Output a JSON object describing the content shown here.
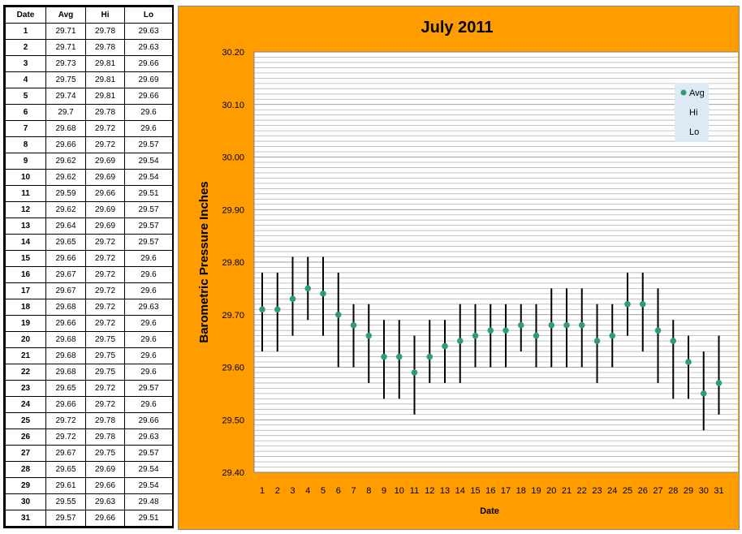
{
  "table": {
    "headers": [
      "Date",
      "Avg",
      "Hi",
      "Lo"
    ],
    "rows": [
      [
        "1",
        "29.71",
        "29.78",
        "29.63"
      ],
      [
        "2",
        "29.71",
        "29.78",
        "29.63"
      ],
      [
        "3",
        "29.73",
        "29.81",
        "29.66"
      ],
      [
        "4",
        "29.75",
        "29.81",
        "29.69"
      ],
      [
        "5",
        "29.74",
        "29.81",
        "29.66"
      ],
      [
        "6",
        "29.7",
        "29.78",
        "29.6"
      ],
      [
        "7",
        "29.68",
        "29.72",
        "29.6"
      ],
      [
        "8",
        "29.66",
        "29.72",
        "29.57"
      ],
      [
        "9",
        "29.62",
        "29.69",
        "29.54"
      ],
      [
        "10",
        "29.62",
        "29.69",
        "29.54"
      ],
      [
        "11",
        "29.59",
        "29.66",
        "29.51"
      ],
      [
        "12",
        "29.62",
        "29.69",
        "29.57"
      ],
      [
        "13",
        "29.64",
        "29.69",
        "29.57"
      ],
      [
        "14",
        "29.65",
        "29.72",
        "29.57"
      ],
      [
        "15",
        "29.66",
        "29.72",
        "29.6"
      ],
      [
        "16",
        "29.67",
        "29.72",
        "29.6"
      ],
      [
        "17",
        "29.67",
        "29.72",
        "29.6"
      ],
      [
        "18",
        "29.68",
        "29.72",
        "29.63"
      ],
      [
        "19",
        "29.66",
        "29.72",
        "29.6"
      ],
      [
        "20",
        "29.68",
        "29.75",
        "29.6"
      ],
      [
        "21",
        "29.68",
        "29.75",
        "29.6"
      ],
      [
        "22",
        "29.68",
        "29.75",
        "29.6"
      ],
      [
        "23",
        "29.65",
        "29.72",
        "29.57"
      ],
      [
        "24",
        "29.66",
        "29.72",
        "29.6"
      ],
      [
        "25",
        "29.72",
        "29.78",
        "29.66"
      ],
      [
        "26",
        "29.72",
        "29.78",
        "29.63"
      ],
      [
        "27",
        "29.67",
        "29.75",
        "29.57"
      ],
      [
        "28",
        "29.65",
        "29.69",
        "29.54"
      ],
      [
        "29",
        "29.61",
        "29.66",
        "29.54"
      ],
      [
        "30",
        "29.55",
        "29.63",
        "29.48"
      ],
      [
        "31",
        "29.57",
        "29.66",
        "29.51"
      ]
    ]
  },
  "chart_data": {
    "type": "scatter",
    "title": "July 2011",
    "xlabel": "Date",
    "ylabel": "Barometric Pressure Inches",
    "ylim": [
      29.4,
      30.2
    ],
    "yticks": [
      "29.40",
      "29.50",
      "29.60",
      "29.70",
      "29.80",
      "29.90",
      "30.00",
      "30.10",
      "30.20"
    ],
    "x": [
      1,
      2,
      3,
      4,
      5,
      6,
      7,
      8,
      9,
      10,
      11,
      12,
      13,
      14,
      15,
      16,
      17,
      18,
      19,
      20,
      21,
      22,
      23,
      24,
      25,
      26,
      27,
      28,
      29,
      30,
      31
    ],
    "series": [
      {
        "name": "Avg",
        "values": [
          29.71,
          29.71,
          29.73,
          29.75,
          29.74,
          29.7,
          29.68,
          29.66,
          29.62,
          29.62,
          29.59,
          29.62,
          29.64,
          29.65,
          29.66,
          29.67,
          29.67,
          29.68,
          29.66,
          29.68,
          29.68,
          29.68,
          29.65,
          29.66,
          29.72,
          29.72,
          29.67,
          29.65,
          29.61,
          29.55,
          29.57
        ]
      },
      {
        "name": "Hi",
        "values": [
          29.78,
          29.78,
          29.81,
          29.81,
          29.81,
          29.78,
          29.72,
          29.72,
          29.69,
          29.69,
          29.66,
          29.69,
          29.69,
          29.72,
          29.72,
          29.72,
          29.72,
          29.72,
          29.72,
          29.75,
          29.75,
          29.75,
          29.72,
          29.72,
          29.78,
          29.78,
          29.75,
          29.69,
          29.66,
          29.63,
          29.66
        ]
      },
      {
        "name": "Lo",
        "values": [
          29.63,
          29.63,
          29.66,
          29.69,
          29.66,
          29.6,
          29.6,
          29.57,
          29.54,
          29.54,
          29.51,
          29.57,
          29.57,
          29.57,
          29.6,
          29.6,
          29.6,
          29.63,
          29.6,
          29.6,
          29.6,
          29.6,
          29.57,
          29.6,
          29.66,
          29.63,
          29.57,
          29.54,
          29.54,
          29.48,
          29.51
        ]
      }
    ],
    "grid": true,
    "legend": "top-right",
    "colors": {
      "avg": "#2e9e6e",
      "range": "#000000",
      "background": "#ff9c00",
      "plot": "#ffffff",
      "grid": "#a6a6a6",
      "legend_bg": "#dde9f5"
    }
  }
}
